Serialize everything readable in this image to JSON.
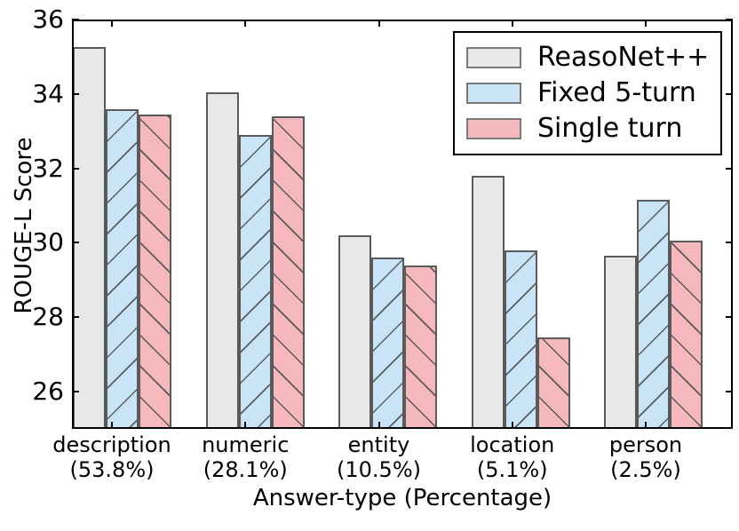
{
  "chart_data": {
    "type": "bar",
    "title": "",
    "xlabel": "Answer-type (Percentage)",
    "ylabel": "ROUGE-L Score",
    "ylim": [
      25,
      36
    ],
    "yticks": [
      26,
      28,
      30,
      32,
      34,
      36
    ],
    "grid": false,
    "legend_position": "upper right",
    "categories": [
      "description",
      "numeric",
      "entity",
      "location",
      "person"
    ],
    "category_percentages": [
      "(53.8%)",
      "(28.1%)",
      "(10.5%)",
      "(5.1%)",
      "(2.5%)"
    ],
    "series": [
      {
        "name": "ReasoNet++",
        "color": "#e8e8e8",
        "edge_color": "#5a5a5a",
        "hatch": "none",
        "values": [
          35.25,
          34.05,
          30.2,
          31.8,
          29.65
        ]
      },
      {
        "name": "Fixed 5-turn",
        "color": "#c9e4f6",
        "edge_color": "#5a5a5a",
        "hatch": "/",
        "values": [
          33.6,
          32.9,
          29.6,
          29.8,
          31.15
        ]
      },
      {
        "name": "Single turn",
        "color": "#f5b8bc",
        "edge_color": "#5a5a5a",
        "hatch": "\\",
        "values": [
          33.45,
          33.4,
          29.4,
          27.45,
          30.05
        ]
      }
    ]
  }
}
